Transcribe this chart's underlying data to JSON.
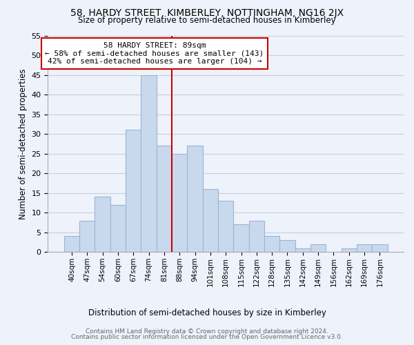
{
  "title": "58, HARDY STREET, KIMBERLEY, NOTTINGHAM, NG16 2JX",
  "subtitle": "Size of property relative to semi-detached houses in Kimberley",
  "xlabel": "Distribution of semi-detached houses by size in Kimberley",
  "ylabel": "Number of semi-detached properties",
  "bar_labels": [
    "40sqm",
    "47sqm",
    "54sqm",
    "60sqm",
    "67sqm",
    "74sqm",
    "81sqm",
    "88sqm",
    "94sqm",
    "101sqm",
    "108sqm",
    "115sqm",
    "122sqm",
    "128sqm",
    "135sqm",
    "142sqm",
    "149sqm",
    "156sqm",
    "162sqm",
    "169sqm",
    "176sqm"
  ],
  "bar_values": [
    4,
    8,
    14,
    12,
    31,
    45,
    27,
    25,
    27,
    16,
    13,
    7,
    8,
    4,
    3,
    1,
    2,
    0,
    1,
    2,
    2
  ],
  "bar_color": "#c9d9ed",
  "bar_edge_color": "#9ab4d4",
  "vline_position": 7.5,
  "ylim": [
    0,
    55
  ],
  "yticks": [
    0,
    5,
    10,
    15,
    20,
    25,
    30,
    35,
    40,
    45,
    50,
    55
  ],
  "annotation_title": "58 HARDY STREET: 89sqm",
  "annotation_line1": "← 58% of semi-detached houses are smaller (143)",
  "annotation_line2": "42% of semi-detached houses are larger (104) →",
  "vline_color": "#cc0000",
  "annotation_box_facecolor": "#ffffff",
  "annotation_box_edgecolor": "#cc0000",
  "footer1": "Contains HM Land Registry data © Crown copyright and database right 2024.",
  "footer2": "Contains public sector information licensed under the Open Government Licence v3.0.",
  "background_color": "#eef2fa",
  "grid_color": "#c5cfe0"
}
